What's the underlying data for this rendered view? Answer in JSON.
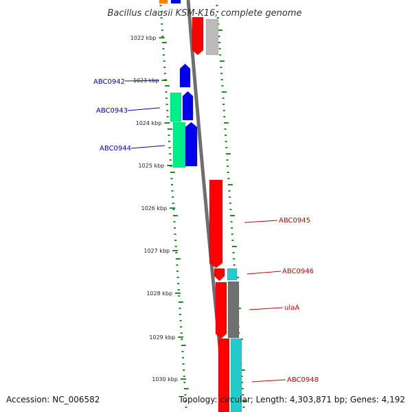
{
  "title": "Bacillus clausii KSM-K16, complete genome",
  "footer": {
    "accession": "Accession: NC_006582",
    "summary": "Topology: circular; Length: 4,303,871 bp; Genes: 4,192"
  },
  "scale_labels": [
    "1022 kbp",
    "1023 kbp",
    "1024 kbp",
    "1025 kbp",
    "1026 kbp",
    "1027 kbp",
    "1028 kbp",
    "1029 kbp",
    "1030 kbp"
  ],
  "gene_labels": {
    "left": [
      "ABC0942",
      "ABC0943",
      "ABC0944"
    ],
    "right": [
      "ABC0945",
      "ABC0946",
      "ulaA",
      "ABC0948"
    ]
  },
  "colors": {
    "backbone": "#808080",
    "forward_cds": "#ff0000",
    "reverse_cds": "#0000ee",
    "right_tick": "#228b22",
    "left_label": "#0000cc",
    "right_label": "#cc0000",
    "green_feature": "#00ee88",
    "cyan_feature": "#22cccc",
    "grey_feature": "#707070"
  }
}
